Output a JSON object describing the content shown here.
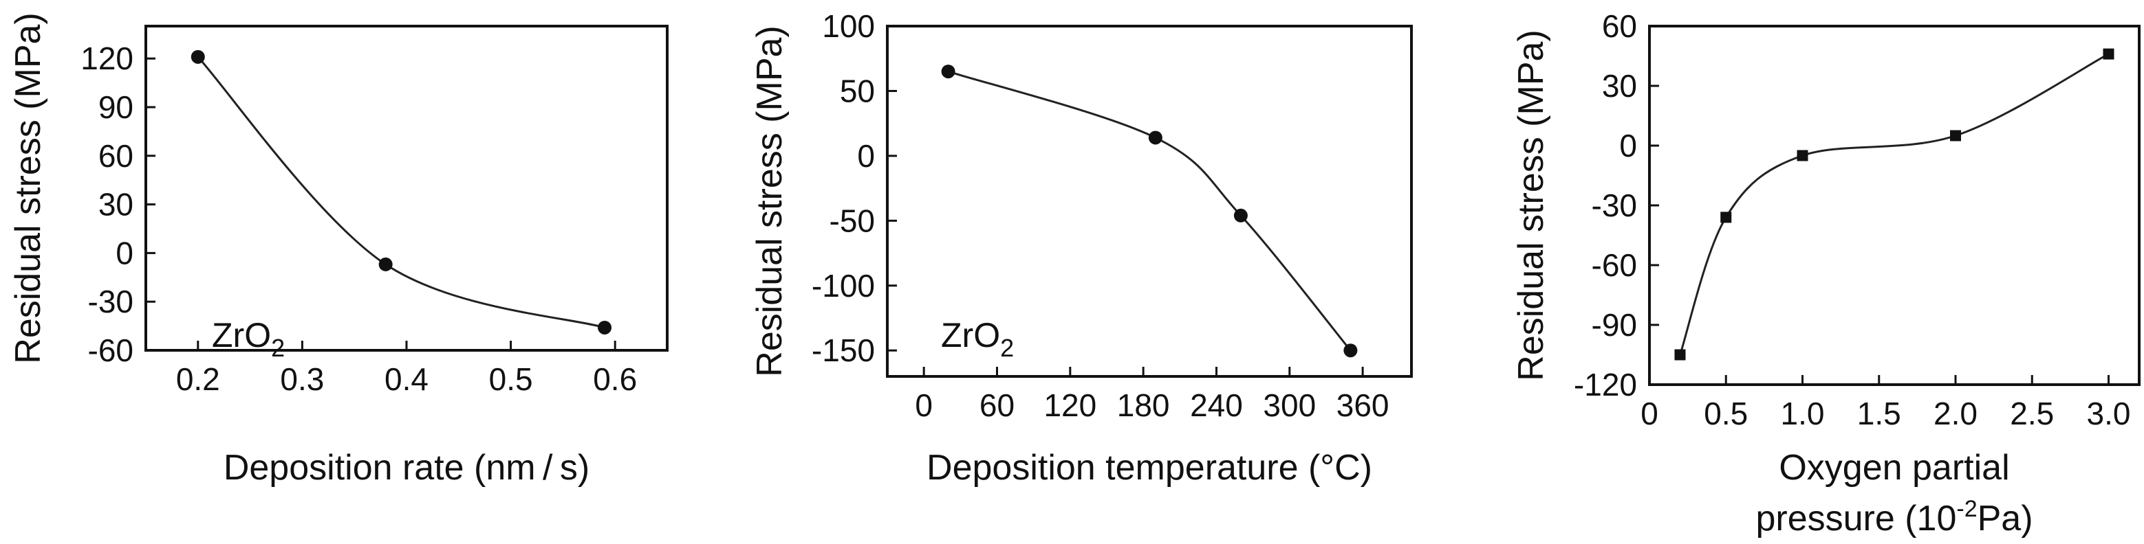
{
  "chart_data": [
    {
      "type": "line",
      "xlabel": "Deposition rate (nm / s)",
      "ylabel": "Residual stress (MPa)",
      "annotation": "ZrO",
      "annotation_sub": "2",
      "xlim": [
        0.15,
        0.65
      ],
      "ylim": [
        -60,
        140
      ],
      "xticks": [
        0.2,
        0.3,
        0.4,
        0.5,
        0.6
      ],
      "xtick_labels": [
        "0.2",
        "0.3",
        "0.4",
        "0.5",
        "0.6"
      ],
      "yticks": [
        -60,
        -30,
        0,
        30,
        60,
        90,
        120
      ],
      "ytick_labels": [
        "-60",
        "-30",
        "0",
        "30",
        "60",
        "90",
        "120"
      ],
      "marker": "circle",
      "series": [
        {
          "x": [
            0.2,
            0.38,
            0.59
          ],
          "y": [
            121,
            -7,
            -46
          ]
        }
      ]
    },
    {
      "type": "line",
      "xlabel": "Deposition temperature (°C)",
      "ylabel": "Residual stress (MPa)",
      "annotation": "ZrO",
      "annotation_sub": "2",
      "xlim": [
        -30,
        400
      ],
      "ylim": [
        -170,
        100
      ],
      "xticks": [
        0,
        60,
        120,
        180,
        240,
        300,
        360
      ],
      "xtick_labels": [
        "0",
        "60",
        "120",
        "180",
        "240",
        "300",
        "360"
      ],
      "yticks": [
        -150,
        -100,
        -50,
        0,
        50,
        100
      ],
      "ytick_labels": [
        "-150",
        "-100",
        "-50",
        "0",
        "50",
        "100"
      ],
      "marker": "circle",
      "series": [
        {
          "x": [
            20,
            190,
            260,
            350
          ],
          "y": [
            65,
            14,
            -46,
            -150
          ]
        }
      ]
    },
    {
      "type": "line",
      "xlabel_lines": [
        "Oxygen partial",
        "pressure (10"
      ],
      "xlabel_sup": "-2",
      "xlabel_tail": "Pa)",
      "ylabel": "Residual stress (MPa)",
      "xlim": [
        0,
        3.2
      ],
      "ylim": [
        -120,
        60
      ],
      "xticks": [
        0,
        0.5,
        1.0,
        1.5,
        2.0,
        2.5,
        3.0
      ],
      "xtick_labels": [
        "0",
        "0.5",
        "1.0",
        "1.5",
        "2.0",
        "2.5",
        "3.0"
      ],
      "yticks": [
        -120,
        -90,
        -60,
        -30,
        0,
        30,
        60
      ],
      "ytick_labels": [
        "-120",
        "-90",
        "-60",
        "-30",
        "0",
        "30",
        "60"
      ],
      "marker": "square",
      "series": [
        {
          "x": [
            0.2,
            0.5,
            1.0,
            2.0,
            3.0
          ],
          "y": [
            -105,
            -36,
            -5,
            5,
            46
          ]
        }
      ]
    }
  ]
}
